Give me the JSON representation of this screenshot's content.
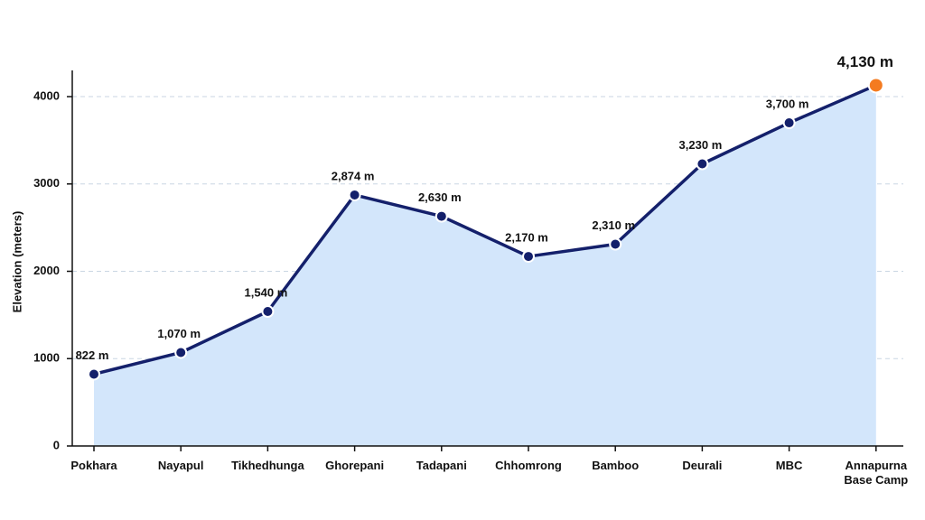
{
  "chart_data": {
    "type": "area-line",
    "y_label": "Elevation (meters)",
    "categories": [
      "Pokhara",
      "Nayapul",
      "Tikhedhunga",
      "Ghorepani",
      "Tadapani",
      "Chhomrong",
      "Bamboo",
      "Deurali",
      "MBC",
      "Annapurna Base Camp"
    ],
    "series": [
      {
        "color": "#14206b",
        "fill_color": "#d3e6fb",
        "highlight_color": "#f47b20",
        "values": [
          822,
          1070,
          1540,
          2874,
          2630,
          2170,
          2310,
          3230,
          3700,
          4130
        ],
        "value_labels": [
          "822 m",
          "1,070 m",
          "1,540 m",
          "2,874 m",
          "2,630 m",
          "2,170 m",
          "2,310 m",
          "3,230 m",
          "3,700 m",
          "4,130 m"
        ]
      }
    ],
    "ylim": [
      0,
      4300
    ],
    "yticks": [
      0,
      1000,
      2000,
      3000,
      4000
    ],
    "grid": true
  }
}
